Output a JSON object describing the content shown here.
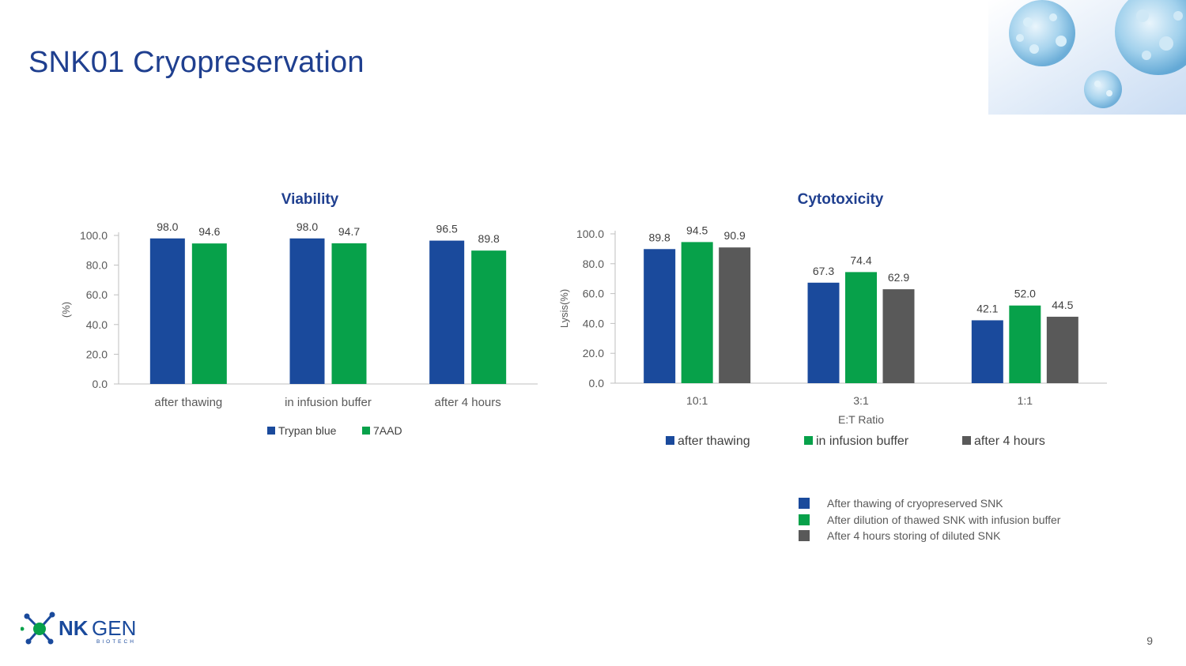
{
  "page": {
    "title": "SNK01 Cryopreservation",
    "page_number": "9"
  },
  "logo": {
    "brand_bold": "NK",
    "brand_light": "GEN",
    "tagline": "BIOTECH"
  },
  "colors": {
    "blue": "#1a4a9c",
    "green": "#07a14a",
    "gray": "#595959",
    "title": "#1f3f8f"
  },
  "chart_data": [
    {
      "type": "bar",
      "title": "Viability",
      "ylabel": "(%)",
      "xlabel": "",
      "ylim": [
        0,
        100
      ],
      "yticks": [
        0,
        20,
        40,
        60,
        80,
        100
      ],
      "ytick_labels": [
        "0.0",
        "20.0",
        "40.0",
        "60.0",
        "80.0",
        "100.0"
      ],
      "categories": [
        "after thawing",
        "in infusion buffer",
        "after 4 hours"
      ],
      "series": [
        {
          "name": "Trypan blue",
          "color": "#1a4a9c",
          "values": [
            98.0,
            98.0,
            96.5
          ],
          "labels": [
            "98.0",
            "98.0",
            "96.5"
          ]
        },
        {
          "name": "7AAD",
          "color": "#07a14a",
          "values": [
            94.6,
            94.7,
            89.8
          ],
          "labels": [
            "94.6",
            "94.7",
            "89.8"
          ]
        }
      ],
      "legend": "bottom"
    },
    {
      "type": "bar",
      "title": "Cytotoxicity",
      "ylabel": "Lysis(%)",
      "xlabel": "E:T Ratio",
      "ylim": [
        0,
        100
      ],
      "yticks": [
        0,
        20,
        40,
        60,
        80,
        100
      ],
      "ytick_labels": [
        "0.0",
        "20.0",
        "40.0",
        "60.0",
        "80.0",
        "100.0"
      ],
      "categories": [
        "10:1",
        "3:1",
        "1:1"
      ],
      "series": [
        {
          "name": "after thawing",
          "color": "#1a4a9c",
          "values": [
            89.8,
            67.3,
            42.1
          ],
          "labels": [
            "89.8",
            "67.3",
            "42.1"
          ]
        },
        {
          "name": "in infusion buffer",
          "color": "#07a14a",
          "values": [
            94.5,
            74.4,
            52.0
          ],
          "labels": [
            "94.5",
            "74.4",
            "52.0"
          ]
        },
        {
          "name": "after 4 hours",
          "color": "#595959",
          "values": [
            90.9,
            62.9,
            44.5
          ],
          "labels": [
            "90.9",
            "62.9",
            "44.5"
          ]
        }
      ],
      "legend": "bottom"
    }
  ],
  "notes": [
    {
      "text": "After thawing of cryopreserved SNK",
      "color": "#1a4a9c"
    },
    {
      "text": "After dilution of thawed SNK with infusion buffer",
      "color": "#07a14a"
    },
    {
      "text": "After 4 hours storing of diluted SNK",
      "color": "#595959"
    }
  ]
}
